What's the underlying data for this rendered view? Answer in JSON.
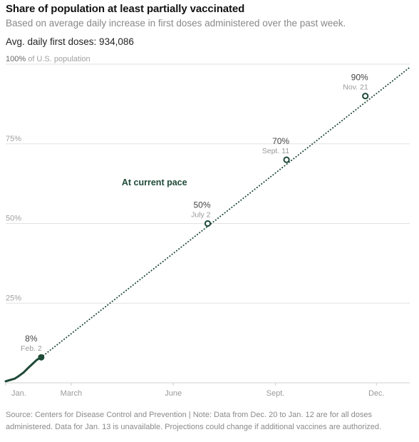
{
  "header": {
    "title": "Share of population at least partially vaccinated",
    "subtitle": "Based on average daily increase in first doses administered over the past week.",
    "stat": "Avg. daily first doses: 934,086"
  },
  "colors": {
    "line": "#1f4a38",
    "grid": "#e2e2e2",
    "axis": "#999999",
    "text": "#121212",
    "muted": "#999999"
  },
  "chart_data": {
    "type": "line",
    "title": "Share of population at least partially vaccinated",
    "ylabel": "",
    "xlabel": "",
    "y_unit_label": "of U.S. population",
    "ylim": [
      0,
      100
    ],
    "y_ticks": [
      {
        "value": 100,
        "label": "100%"
      },
      {
        "value": 75,
        "label": "75%"
      },
      {
        "value": 50,
        "label": "50%"
      },
      {
        "value": 25,
        "label": "25%"
      }
    ],
    "xlim": [
      "2021-01-01",
      "2021-12-31"
    ],
    "x_ticks": [
      {
        "date": "2021-01-01",
        "label": "Jan."
      },
      {
        "date": "2021-03-01",
        "label": "March"
      },
      {
        "date": "2021-06-01",
        "label": "June"
      },
      {
        "date": "2021-09-01",
        "label": "Sept."
      },
      {
        "date": "2021-12-01",
        "label": "Dec."
      }
    ],
    "grid": true,
    "series": [
      {
        "name": "",
        "style": "solid",
        "points": [
          {
            "x": "2021-01-01",
            "y": 0.5
          },
          {
            "x": "2021-01-05",
            "y": 0.9
          },
          {
            "x": "2021-01-09",
            "y": 1.3
          },
          {
            "x": "2021-01-13",
            "y": 2.2
          },
          {
            "x": "2021-01-17",
            "y": 3.2
          },
          {
            "x": "2021-01-21",
            "y": 4.6
          },
          {
            "x": "2021-01-25",
            "y": 5.9
          },
          {
            "x": "2021-01-29",
            "y": 7.2
          },
          {
            "x": "2021-02-02",
            "y": 8
          }
        ]
      },
      {
        "name": "At current pace",
        "style": "dotted",
        "points": [
          {
            "x": "2021-02-02",
            "y": 8
          },
          {
            "x": "2021-12-31",
            "y": 99
          }
        ]
      }
    ],
    "annotations": [
      {
        "x": "2021-02-02",
        "y": 8,
        "pct": "8%",
        "date": "Feb. 2",
        "marker": "filled",
        "anchor": "middle"
      },
      {
        "x": "2021-07-02",
        "y": 50,
        "pct": "50%",
        "date": "July 2",
        "marker": "open",
        "anchor": "end"
      },
      {
        "x": "2021-09-11",
        "y": 70,
        "pct": "70%",
        "date": "Sept. 11",
        "marker": "open",
        "anchor": "end"
      },
      {
        "x": "2021-11-21",
        "y": 90,
        "pct": "90%",
        "date": "Nov. 21",
        "marker": "open",
        "anchor": "end"
      }
    ],
    "series_label": {
      "text": "At current pace",
      "x": "2021-05-15",
      "y": 62
    }
  },
  "source": "Source: Centers for Disease Control and Prevention | Note: Data from Dec. 20 to Jan. 12 are for all doses administered. Data for Jan. 13 is unavailable. Projections could change if additional vaccines are authorized."
}
